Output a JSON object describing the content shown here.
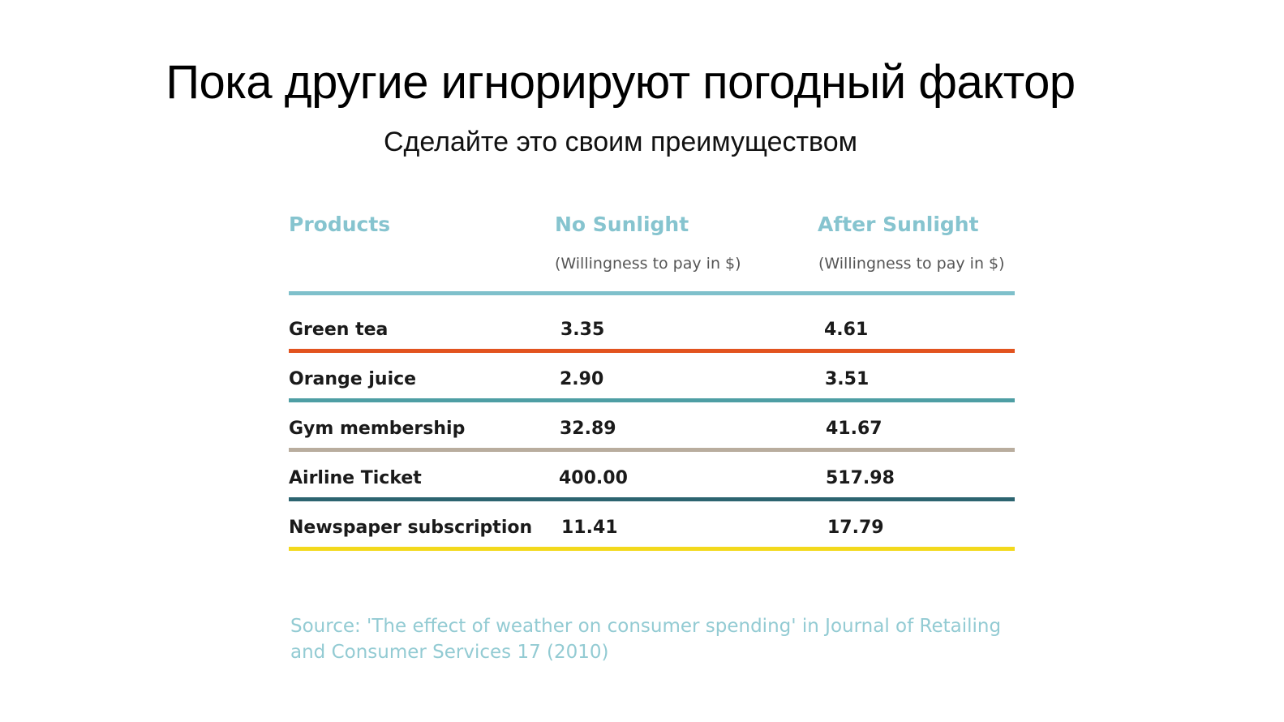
{
  "slide": {
    "title": "Пока другие игнорируют погодный фактор",
    "subtitle": "Сделайте это своим преимуществом"
  },
  "table": {
    "headers": [
      {
        "label": "Products",
        "sub": ""
      },
      {
        "label": "No Sunlight",
        "sub": "(Willingness to pay in $)"
      },
      {
        "label": "After Sunlight",
        "sub": "(Willingness to pay in $)"
      }
    ],
    "header_rule_color": "#7fc0cb",
    "header_color": "#86c4cf",
    "rows": [
      {
        "product": "Green tea",
        "no_sunlight": "3.35",
        "after_sunlight": "4.61",
        "rule_color": "#e2531f"
      },
      {
        "product": "Orange juice",
        "no_sunlight": "2.90",
        "after_sunlight": "3.51",
        "rule_color": "#4e9ea4"
      },
      {
        "product": "Gym membership",
        "no_sunlight": "32.89",
        "after_sunlight": "41.67",
        "rule_color": "#b9ad9e"
      },
      {
        "product": "Airline Ticket",
        "no_sunlight": "400.00",
        "after_sunlight": "517.98",
        "rule_color": "#2c6470"
      },
      {
        "product": "Newspaper subscription",
        "no_sunlight": "11.41",
        "after_sunlight": "17.79",
        "rule_color": "#f3d91c"
      }
    ]
  },
  "source": {
    "line1": "Source: 'The effect of weather on consumer spending' in Journal of Retailing",
    "line2": "and Consumer Services 17 (2010)"
  }
}
